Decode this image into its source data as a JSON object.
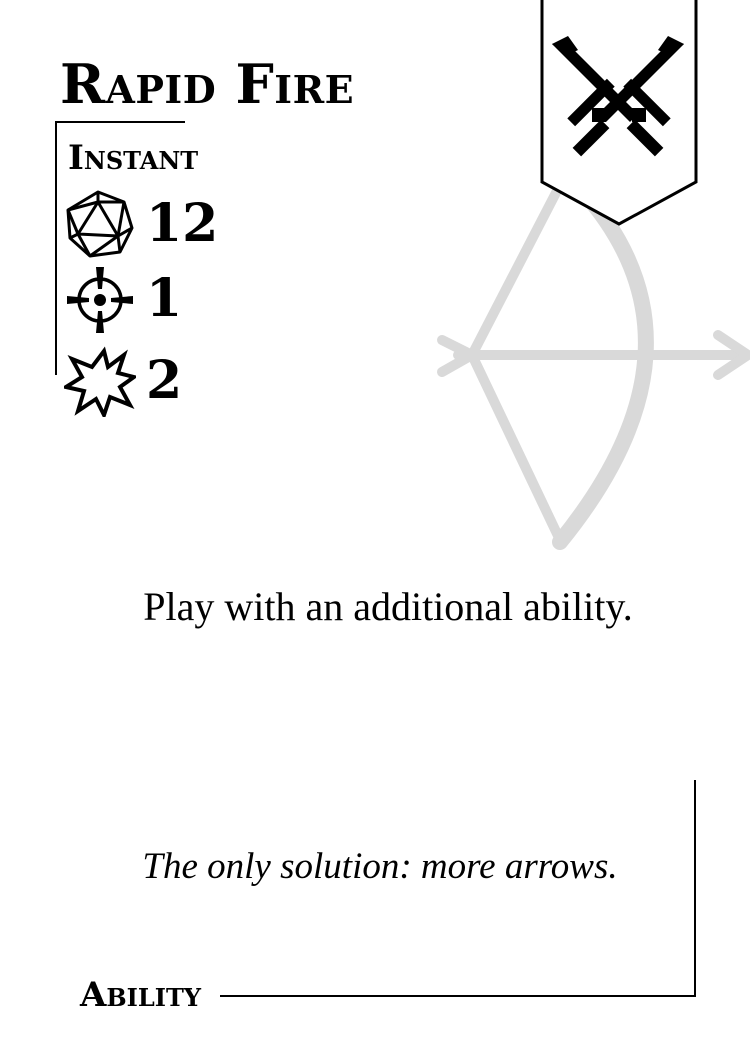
{
  "card": {
    "title": "Rapid Fire",
    "speed": "Instant",
    "stats": {
      "cost_icon": "d20-die-icon",
      "cost": "12",
      "range_icon": "crosshair-icon",
      "range": "1",
      "damage_icon": "burst-icon",
      "damage": "2"
    },
    "banner_icon": "crossed-swords-icon",
    "art_icon": "bow-and-arrow-icon",
    "effect_text": "Play with an additional ability.",
    "flavor_text": "The only solution: more arrows.",
    "type_label": "Ability"
  },
  "colors": {
    "ink": "#000000",
    "art": "#d9d9d9",
    "background": "#ffffff"
  }
}
